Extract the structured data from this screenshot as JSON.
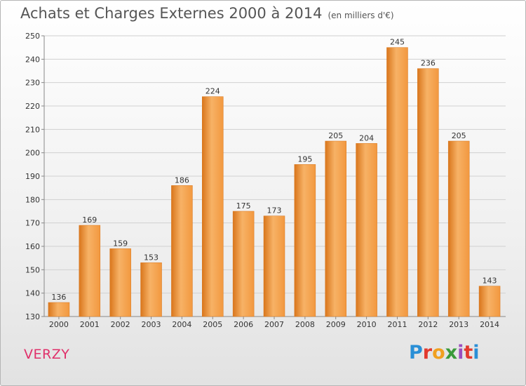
{
  "header": {
    "title": "Achats et Charges Externes 2000 à 2014",
    "subtitle": "(en milliers d'€)"
  },
  "footer": {
    "commune": "VERZY",
    "logo_text": "Proxiti",
    "logo_colors": [
      "#2a8fd6",
      "#e23a2e",
      "#f0a020",
      "#3a9a3a",
      "#9a4fc0",
      "#e23a2e",
      "#2a8fd6"
    ]
  },
  "colors": {
    "bar_fill": "#f2983f",
    "bar_fill_light": "#f7b266",
    "bar_fill_dark": "#d9761c",
    "grid": "#d0d0d0",
    "title_text": "#555555",
    "commune_text": "#e0306a"
  },
  "chart_data": {
    "type": "bar",
    "categories": [
      "2000",
      "2001",
      "2002",
      "2003",
      "2004",
      "2005",
      "2006",
      "2007",
      "2008",
      "2009",
      "2010",
      "2011",
      "2012",
      "2013",
      "2014"
    ],
    "values": [
      136,
      169,
      159,
      153,
      186,
      224,
      175,
      173,
      195,
      205,
      204,
      245,
      236,
      205,
      143
    ],
    "data_labels": [
      "136",
      "169",
      "159",
      "153",
      "186",
      "224",
      "175",
      "173",
      "195",
      "205",
      "204",
      "245",
      "236",
      "205",
      "143"
    ],
    "yticks": [
      "130",
      "140",
      "150",
      "160",
      "170",
      "180",
      "190",
      "200",
      "210",
      "220",
      "230",
      "240",
      "250"
    ],
    "ylim": [
      130,
      250
    ],
    "grid": true,
    "legend": "none"
  }
}
